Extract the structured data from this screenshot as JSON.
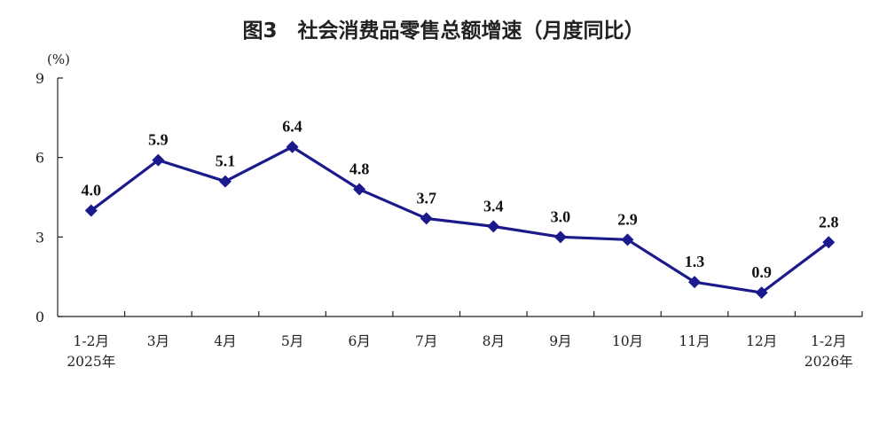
{
  "chart_data": {
    "type": "line",
    "title": "图3　社会消费品零售总额增速（月度同比）",
    "unit": "(%)",
    "categories": [
      [
        "1-2月",
        "2025年"
      ],
      [
        "3月"
      ],
      [
        "4月"
      ],
      [
        "5月"
      ],
      [
        "6月"
      ],
      [
        "7月"
      ],
      [
        "8月"
      ],
      [
        "9月"
      ],
      [
        "10月"
      ],
      [
        "11月"
      ],
      [
        "12月"
      ],
      [
        "1-2月",
        "2026年"
      ]
    ],
    "series": [
      {
        "values": [
          4.0,
          5.9,
          5.1,
          6.4,
          4.8,
          3.7,
          3.4,
          3.0,
          2.9,
          1.3,
          0.9,
          2.8
        ],
        "labels": [
          "4.0",
          "5.9",
          "5.1",
          "6.4",
          "4.8",
          "3.7",
          "3.4",
          "3.0",
          "2.9",
          "1.3",
          "0.9",
          "2.8"
        ],
        "color": "#1a1a8c",
        "marker": "diamond"
      }
    ],
    "ylim": [
      0,
      9
    ],
    "yticks": [
      0,
      3,
      6,
      9
    ],
    "ytick_labels": [
      "0",
      "3",
      "6",
      "9"
    ],
    "grid": false,
    "legend": "none"
  }
}
